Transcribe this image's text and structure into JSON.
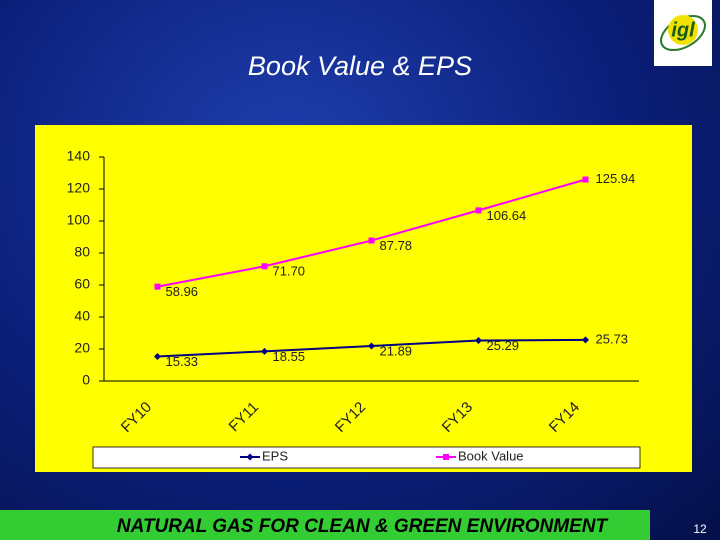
{
  "chart_data": {
    "type": "line",
    "title": "Book Value & EPS",
    "categories": [
      "FY10",
      "FY11",
      "FY12",
      "FY13",
      "FY14"
    ],
    "series": [
      {
        "name": "EPS",
        "color": "#000080",
        "marker": "diamond",
        "values": [
          15.33,
          18.55,
          21.89,
          25.29,
          25.73
        ]
      },
      {
        "name": "Book Value",
        "color": "#ff00ff",
        "marker": "square",
        "values": [
          58.96,
          71.7,
          87.78,
          106.64,
          125.94
        ],
        "value_labels": [
          "58.96",
          "71.70",
          "87.78",
          "106.64",
          "125.94"
        ]
      }
    ],
    "ylim": [
      0,
      140
    ],
    "yticks": [
      0,
      20,
      40,
      60,
      80,
      100,
      120,
      140
    ],
    "grid": false,
    "legend": "bottom"
  },
  "logo": "igl",
  "footer": {
    "slogan": "NATURAL GAS FOR CLEAN & GREEN ENVIRONMENT",
    "page_number": "12"
  }
}
